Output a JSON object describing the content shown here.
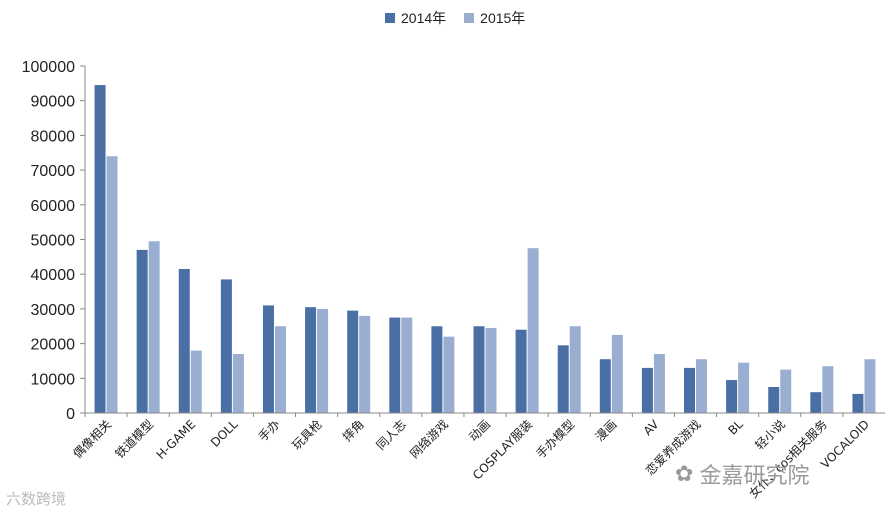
{
  "chart_data": {
    "type": "bar",
    "title": "",
    "xlabel": "",
    "ylabel": "",
    "ylim": [
      0,
      100000
    ],
    "yticks": [
      0,
      10000,
      20000,
      30000,
      40000,
      50000,
      60000,
      70000,
      80000,
      90000,
      100000
    ],
    "grid": false,
    "legend_position": "top-center",
    "categories": [
      "偶像相关",
      "铁道模型",
      "H-GAME",
      "DOLL",
      "手办",
      "玩具枪",
      "摔角",
      "同人志",
      "网络游戏",
      "动画",
      "COSPLAY服装",
      "手办模型",
      "漫画",
      "AV",
      "恋爱养成游戏",
      "BL",
      "轻小说",
      "女仆、cos相关服务",
      "VOCALOID"
    ],
    "series": [
      {
        "name": "2014年",
        "color": "#4a6fa5",
        "values": [
          94500,
          47000,
          41500,
          38500,
          31000,
          30500,
          29500,
          27500,
          25000,
          25000,
          24000,
          19500,
          15500,
          13000,
          13000,
          9500,
          7500,
          6000,
          5500
        ]
      },
      {
        "name": "2015年",
        "color": "#9aaed1",
        "values": [
          74000,
          49500,
          18000,
          17000,
          25000,
          30000,
          28000,
          27500,
          22000,
          24500,
          47500,
          25000,
          22500,
          17000,
          15500,
          14500,
          12500,
          13500,
          15500
        ]
      }
    ]
  },
  "watermarks": {
    "left": "六数跨境",
    "right": "金嘉研究院"
  }
}
